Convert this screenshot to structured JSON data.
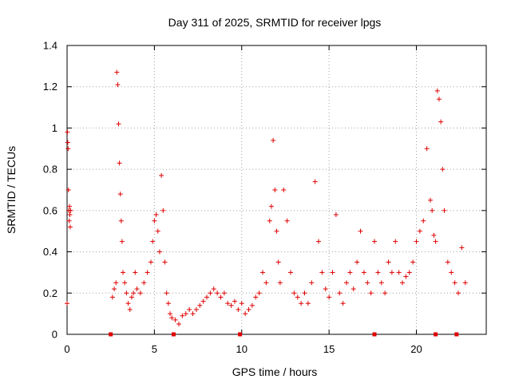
{
  "chart_data": {
    "type": "scatter",
    "title": "Day 311 of 2025, SRMTID for receiver lpgs",
    "xlabel": "GPS time / hours",
    "ylabel": "SRMTID / TECUs",
    "xlim": [
      0,
      24
    ],
    "ylim": [
      0,
      1.4
    ],
    "xticks": [
      0,
      5,
      10,
      15,
      20
    ],
    "yticks": [
      0,
      0.2,
      0.4,
      0.6,
      0.8,
      1,
      1.2,
      1.4
    ],
    "ytick_labels": [
      "0",
      "0.2",
      "0.4",
      "0.6",
      "0.8",
      "1",
      "1.2",
      "1.4"
    ],
    "grid": true,
    "marker": "+",
    "color": "#e00000",
    "gap_marker_color": "#e00000",
    "gap_markers_x": [
      2.5,
      6.1,
      9.9,
      17.6,
      21.1,
      22.3
    ],
    "series": [
      {
        "name": "SRMTID",
        "x": [
          0.0,
          0.02,
          0.04,
          0.06,
          0.08,
          0.1,
          0.12,
          0.14,
          0.16,
          0.18,
          0.2,
          2.6,
          2.7,
          2.8,
          2.85,
          2.9,
          2.95,
          3.0,
          3.05,
          3.1,
          3.15,
          3.2,
          3.3,
          3.4,
          3.5,
          3.6,
          3.7,
          3.8,
          3.9,
          4.0,
          4.2,
          4.4,
          4.6,
          4.8,
          4.9,
          5.0,
          5.1,
          5.2,
          5.3,
          5.4,
          5.5,
          5.6,
          5.7,
          5.8,
          5.9,
          6.0,
          6.2,
          6.4,
          6.6,
          6.8,
          7.0,
          7.2,
          7.4,
          7.6,
          7.8,
          8.0,
          8.2,
          8.4,
          8.6,
          8.8,
          9.0,
          9.2,
          9.4,
          9.6,
          9.8,
          10.0,
          10.2,
          10.4,
          10.6,
          10.8,
          11.0,
          11.2,
          11.4,
          11.6,
          11.7,
          11.8,
          11.9,
          12.0,
          12.1,
          12.2,
          12.4,
          12.6,
          12.8,
          13.0,
          13.2,
          13.4,
          13.6,
          13.8,
          14.0,
          14.2,
          14.4,
          14.6,
          14.8,
          15.0,
          15.2,
          15.4,
          15.6,
          15.8,
          16.0,
          16.2,
          16.4,
          16.6,
          16.8,
          17.0,
          17.2,
          17.4,
          17.6,
          17.8,
          18.0,
          18.2,
          18.4,
          18.6,
          18.8,
          19.0,
          19.2,
          19.4,
          19.6,
          19.8,
          20.0,
          20.2,
          20.4,
          20.6,
          20.8,
          20.9,
          21.0,
          21.1,
          21.2,
          21.3,
          21.4,
          21.5,
          21.6,
          21.8,
          22.0,
          22.2,
          22.4,
          22.6,
          22.8
        ],
        "y": [
          0.15,
          0.98,
          0.93,
          0.9,
          0.7,
          0.6,
          0.55,
          0.62,
          0.58,
          0.52,
          0.6,
          0.18,
          0.22,
          0.25,
          1.27,
          1.21,
          1.02,
          0.83,
          0.68,
          0.55,
          0.45,
          0.3,
          0.25,
          0.2,
          0.15,
          0.12,
          0.18,
          0.2,
          0.3,
          0.22,
          0.2,
          0.25,
          0.3,
          0.35,
          0.45,
          0.55,
          0.58,
          0.5,
          0.4,
          0.77,
          0.6,
          0.35,
          0.2,
          0.15,
          0.1,
          0.08,
          0.07,
          0.05,
          0.09,
          0.1,
          0.12,
          0.1,
          0.12,
          0.14,
          0.16,
          0.18,
          0.2,
          0.22,
          0.2,
          0.18,
          0.2,
          0.15,
          0.14,
          0.16,
          0.12,
          0.15,
          0.1,
          0.12,
          0.14,
          0.18,
          0.2,
          0.3,
          0.25,
          0.55,
          0.62,
          0.94,
          0.7,
          0.5,
          0.35,
          0.25,
          0.7,
          0.55,
          0.3,
          0.2,
          0.18,
          0.15,
          0.2,
          0.15,
          0.25,
          0.74,
          0.45,
          0.3,
          0.22,
          0.18,
          0.3,
          0.58,
          0.2,
          0.15,
          0.25,
          0.3,
          0.22,
          0.35,
          0.5,
          0.3,
          0.25,
          0.2,
          0.45,
          0.3,
          0.25,
          0.2,
          0.35,
          0.3,
          0.45,
          0.3,
          0.25,
          0.28,
          0.3,
          0.35,
          0.45,
          0.5,
          0.55,
          0.9,
          0.65,
          0.6,
          0.48,
          0.45,
          1.18,
          1.14,
          1.03,
          0.8,
          0.6,
          0.35,
          0.3,
          0.25,
          0.2,
          0.42,
          0.25
        ]
      }
    ]
  }
}
